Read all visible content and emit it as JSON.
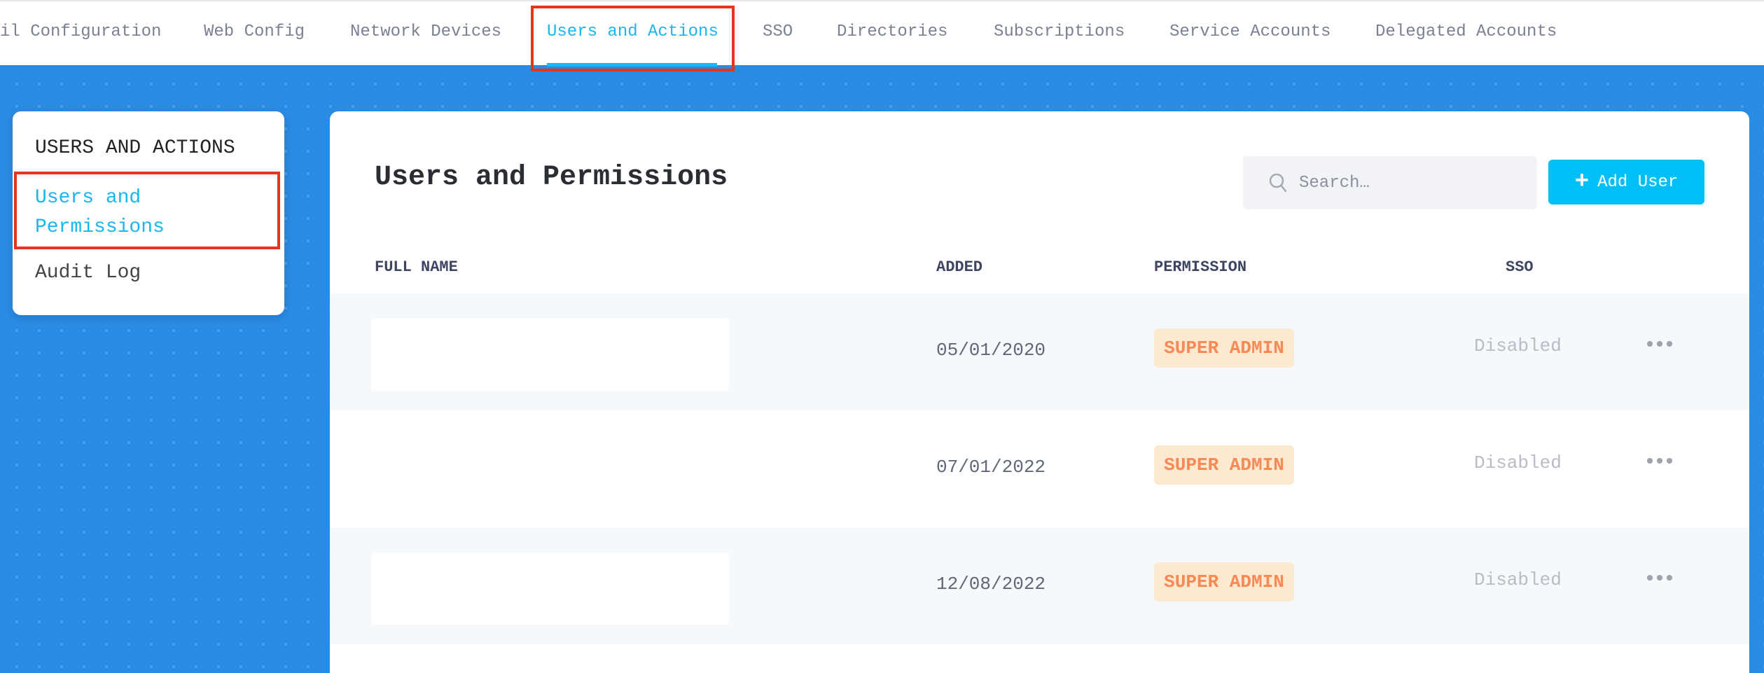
{
  "topnav": {
    "tabs": [
      {
        "label": "il Configuration"
      },
      {
        "label": "Web Config"
      },
      {
        "label": "Network Devices"
      },
      {
        "label": "Users and Actions",
        "active": true
      },
      {
        "label": "SSO"
      },
      {
        "label": "Directories"
      },
      {
        "label": "Subscriptions"
      },
      {
        "label": "Service Accounts"
      },
      {
        "label": "Delegated Accounts"
      }
    ]
  },
  "sidebar": {
    "heading": "USERS AND ACTIONS",
    "items": [
      {
        "label": "Users and Permissions",
        "active": true
      },
      {
        "label": "Audit Log"
      }
    ]
  },
  "main": {
    "title": "Users and Permissions",
    "search": {
      "placeholder": "Search…",
      "value": "",
      "icon": "search-icon"
    },
    "add_user": {
      "label": "Add User",
      "icon": "plus-icon"
    },
    "columns": [
      "FULL NAME",
      "ADDED",
      "PERMISSION",
      "SSO"
    ],
    "rows": [
      {
        "full_name": "",
        "added": "05/01/2020",
        "permission": "SUPER ADMIN",
        "sso": "Disabled"
      },
      {
        "full_name": "",
        "added": "07/01/2022",
        "permission": "SUPER ADMIN",
        "sso": "Disabled"
      },
      {
        "full_name": "",
        "added": "12/08/2022",
        "permission": "SUPER ADMIN",
        "sso": "Disabled"
      }
    ],
    "row_menu_icon": "more-horizontal-icon",
    "row_menu_glyph": "•••"
  },
  "colors": {
    "accent": "#1ab6ef",
    "button": "#00bef6",
    "background": "#2a8be3",
    "badge_bg": "#fde8d0",
    "badge_text": "#f58a56",
    "highlight_box": "#e8341c"
  }
}
